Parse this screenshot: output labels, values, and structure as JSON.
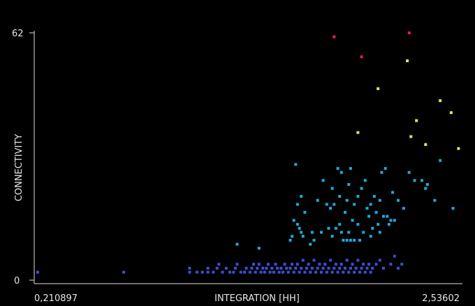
{
  "chart_data": {
    "type": "scatter",
    "xlabel": "INTEGRATION [HH]",
    "ylabel": "CONNECTIVITY",
    "x_tick_labels": [
      "0,210897",
      "2,53602"
    ],
    "y_tick_labels": [
      "0",
      "62"
    ],
    "xlim": [
      0.210897,
      2.53602
    ],
    "ylim": [
      0,
      62
    ],
    "grid": false,
    "legend": "none",
    "colors": {
      "background": "#000000",
      "axis": "#dcdcdc",
      "text": "#e8e8e8",
      "low": "#3b50d0",
      "mid": "#1ea9d8",
      "high": "#e8e54a",
      "top": "#e8204a"
    },
    "series": [
      {
        "color": "#3b50d0",
        "points": [
          [
            0.23,
            2
          ],
          [
            0.7,
            2
          ],
          [
            1.06,
            2
          ],
          [
            1.06,
            3
          ],
          [
            1.1,
            2
          ],
          [
            1.13,
            2
          ],
          [
            1.16,
            2
          ],
          [
            1.16,
            3
          ],
          [
            1.19,
            2
          ],
          [
            1.21,
            3
          ],
          [
            1.22,
            4
          ],
          [
            1.24,
            2
          ],
          [
            1.26,
            3
          ],
          [
            1.28,
            2
          ],
          [
            1.3,
            2
          ],
          [
            1.31,
            3
          ],
          [
            1.32,
            4
          ],
          [
            1.34,
            2
          ],
          [
            1.36,
            2
          ],
          [
            1.37,
            3
          ],
          [
            1.39,
            2
          ],
          [
            1.4,
            3
          ],
          [
            1.41,
            4
          ],
          [
            1.42,
            2
          ],
          [
            1.43,
            3
          ],
          [
            1.44,
            4
          ],
          [
            1.45,
            2
          ],
          [
            1.46,
            3
          ],
          [
            1.47,
            2
          ],
          [
            1.48,
            3
          ],
          [
            1.49,
            4
          ],
          [
            1.5,
            2
          ],
          [
            1.51,
            3
          ],
          [
            1.52,
            2
          ],
          [
            1.53,
            4
          ],
          [
            1.54,
            3
          ],
          [
            1.55,
            2
          ],
          [
            1.56,
            3
          ],
          [
            1.57,
            2
          ],
          [
            1.58,
            4
          ],
          [
            1.59,
            3
          ],
          [
            1.6,
            2
          ],
          [
            1.61,
            3
          ],
          [
            1.62,
            4
          ],
          [
            1.63,
            2
          ],
          [
            1.64,
            3
          ],
          [
            1.65,
            4
          ],
          [
            1.66,
            2
          ],
          [
            1.67,
            3
          ],
          [
            1.68,
            5
          ],
          [
            1.69,
            2
          ],
          [
            1.7,
            3
          ],
          [
            1.71,
            4
          ],
          [
            1.72,
            2
          ],
          [
            1.73,
            3
          ],
          [
            1.74,
            5
          ],
          [
            1.75,
            2
          ],
          [
            1.76,
            3
          ],
          [
            1.77,
            4
          ],
          [
            1.78,
            2
          ],
          [
            1.79,
            3
          ],
          [
            1.8,
            4
          ],
          [
            1.81,
            2
          ],
          [
            1.82,
            3
          ],
          [
            1.83,
            5
          ],
          [
            1.84,
            2
          ],
          [
            1.85,
            3
          ],
          [
            1.86,
            4
          ],
          [
            1.87,
            2
          ],
          [
            1.88,
            3
          ],
          [
            1.89,
            4
          ],
          [
            1.9,
            2
          ],
          [
            1.91,
            3
          ],
          [
            1.92,
            5
          ],
          [
            1.93,
            2
          ],
          [
            1.94,
            3
          ],
          [
            1.95,
            4
          ],
          [
            1.96,
            2
          ],
          [
            1.97,
            3
          ],
          [
            1.98,
            5
          ],
          [
            1.99,
            2
          ],
          [
            2.0,
            3
          ],
          [
            2.01,
            4
          ],
          [
            2.02,
            2
          ],
          [
            2.03,
            3
          ],
          [
            2.04,
            4
          ],
          [
            2.05,
            2
          ],
          [
            2.06,
            3
          ],
          [
            2.08,
            4
          ],
          [
            2.1,
            5
          ],
          [
            2.12,
            3
          ],
          [
            2.16,
            4
          ],
          [
            2.18,
            6
          ],
          [
            2.2,
            3
          ],
          [
            2.22,
            4
          ]
        ]
      },
      {
        "color": "#1ea9d8",
        "points": [
          [
            1.32,
            9
          ],
          [
            1.44,
            8
          ],
          [
            1.61,
            10
          ],
          [
            1.62,
            11
          ],
          [
            1.63,
            15
          ],
          [
            1.64,
            29
          ],
          [
            1.65,
            19
          ],
          [
            1.65,
            14
          ],
          [
            1.66,
            13
          ],
          [
            1.67,
            21
          ],
          [
            1.67,
            12
          ],
          [
            1.68,
            11
          ],
          [
            1.69,
            17
          ],
          [
            1.72,
            9
          ],
          [
            1.73,
            12
          ],
          [
            1.74,
            10
          ],
          [
            1.76,
            20
          ],
          [
            1.78,
            12
          ],
          [
            1.79,
            25
          ],
          [
            1.81,
            19
          ],
          [
            1.82,
            13
          ],
          [
            1.83,
            18
          ],
          [
            1.84,
            23
          ],
          [
            1.84,
            11
          ],
          [
            1.85,
            19
          ],
          [
            1.86,
            13
          ],
          [
            1.87,
            28
          ],
          [
            1.88,
            21
          ],
          [
            1.88,
            14
          ],
          [
            1.89,
            27
          ],
          [
            1.89,
            12
          ],
          [
            1.9,
            10
          ],
          [
            1.91,
            17
          ],
          [
            1.92,
            20
          ],
          [
            1.92,
            10
          ],
          [
            1.93,
            24
          ],
          [
            1.93,
            12
          ],
          [
            1.94,
            28
          ],
          [
            1.94,
            10
          ],
          [
            1.95,
            15
          ],
          [
            1.96,
            19
          ],
          [
            1.96,
            10
          ],
          [
            1.98,
            21
          ],
          [
            1.98,
            14
          ],
          [
            1.99,
            10
          ],
          [
            2.0,
            23
          ],
          [
            2.01,
            12
          ],
          [
            2.02,
            25
          ],
          [
            2.03,
            18
          ],
          [
            2.04,
            16
          ],
          [
            2.05,
            19
          ],
          [
            2.05,
            11
          ],
          [
            2.06,
            13
          ],
          [
            2.07,
            21
          ],
          [
            2.08,
            17
          ],
          [
            2.09,
            14
          ],
          [
            2.1,
            20
          ],
          [
            2.1,
            12
          ],
          [
            2.11,
            27
          ],
          [
            2.12,
            16
          ],
          [
            2.13,
            28
          ],
          [
            2.14,
            16
          ],
          [
            2.15,
            14
          ],
          [
            2.16,
            15
          ],
          [
            2.17,
            22
          ],
          [
            2.18,
            15
          ],
          [
            2.2,
            20
          ],
          [
            2.23,
            18
          ],
          [
            2.26,
            27
          ],
          [
            2.29,
            25
          ],
          [
            2.33,
            25
          ],
          [
            2.35,
            23
          ],
          [
            2.36,
            24
          ],
          [
            2.4,
            20
          ],
          [
            2.43,
            30
          ],
          [
            2.5,
            18
          ]
        ]
      },
      {
        "color": "#e8e54a",
        "points": [
          [
            1.98,
            37
          ],
          [
            2.09,
            48
          ],
          [
            2.25,
            55
          ],
          [
            2.27,
            36
          ],
          [
            2.3,
            40
          ],
          [
            2.35,
            34
          ],
          [
            2.43,
            45
          ],
          [
            2.49,
            42
          ],
          [
            2.53,
            33
          ]
        ]
      },
      {
        "color": "#e8204a",
        "points": [
          [
            1.85,
            61
          ],
          [
            2.0,
            56
          ],
          [
            2.26,
            62
          ]
        ]
      }
    ]
  }
}
